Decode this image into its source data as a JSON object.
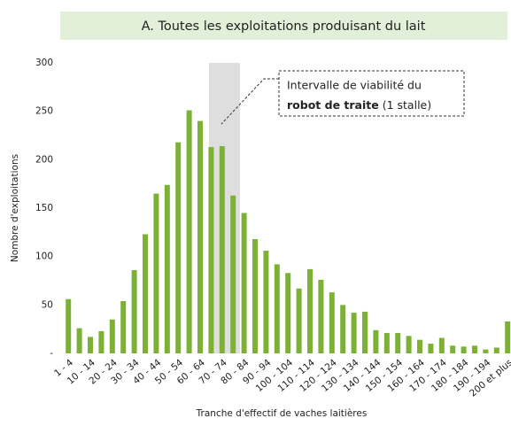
{
  "chart_data": {
    "type": "bar",
    "title": "A. Toutes les exploitations produisant du lait",
    "x_label": "Tranche d'effectif de vaches laitières",
    "y_label": "Nombre d'exploitations",
    "annotation": {
      "line1": "Intervalle de viabilité du",
      "bold": "robot de traite",
      "rest": "(1 stalle)"
    },
    "categories": [
      "1 - 4",
      null,
      "10 - 14",
      null,
      "20 - 24",
      null,
      "30 - 34",
      null,
      "40 - 44",
      null,
      "50 - 54",
      null,
      "60 - 64",
      null,
      "70 - 74",
      null,
      "80 - 84",
      null,
      "90 - 94",
      null,
      "100 - 104",
      null,
      "110 - 114",
      null,
      "120 - 124",
      null,
      "130 - 134",
      null,
      "140 - 144",
      null,
      "150 - 154",
      null,
      "160 - 164",
      null,
      "170 - 174",
      null,
      "180 - 184",
      null,
      "190 - 194",
      null,
      "200 et plus"
    ],
    "values": [
      56,
      26,
      17,
      23,
      35,
      54,
      86,
      123,
      165,
      174,
      218,
      251,
      240,
      213,
      214,
      163,
      145,
      118,
      106,
      92,
      83,
      67,
      87,
      76,
      63,
      50,
      42,
      43,
      24,
      21,
      21,
      18,
      14,
      10,
      16,
      8,
      7,
      8,
      4,
      6,
      33
    ],
    "color": "#7cb135",
    "ylim": [
      0,
      300
    ],
    "yticks": [
      {
        "value": 0,
        "label": "-"
      },
      50,
      100,
      150,
      200,
      250,
      300
    ],
    "grid": false
  }
}
